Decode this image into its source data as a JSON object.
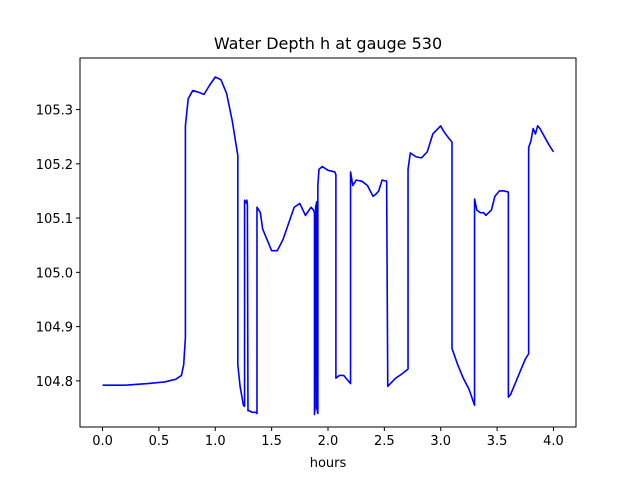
{
  "chart_data": {
    "type": "line",
    "title": "Water Depth h at gauge 530",
    "xlabel": "hours",
    "ylabel": "",
    "xlim": [
      -0.2,
      4.2
    ],
    "ylim": [
      104.715,
      105.395
    ],
    "xticks": [
      0.0,
      0.5,
      1.0,
      1.5,
      2.0,
      2.5,
      3.0,
      3.5,
      4.0
    ],
    "xtick_labels": [
      "0.0",
      "0.5",
      "1.0",
      "1.5",
      "2.0",
      "2.5",
      "3.0",
      "3.5",
      "4.0"
    ],
    "yticks": [
      104.8,
      104.9,
      105.0,
      105.1,
      105.2,
      105.3
    ],
    "ytick_labels": [
      "104.8",
      "104.9",
      "105.0",
      "105.1",
      "105.2",
      "105.3"
    ],
    "grid": false,
    "series": [
      {
        "color": "#0000ff",
        "x": [
          0.0,
          0.2,
          0.4,
          0.55,
          0.65,
          0.7,
          0.72,
          0.735,
          0.735,
          0.76,
          0.8,
          0.85,
          0.9,
          0.95,
          1.0,
          1.05,
          1.1,
          1.15,
          1.2,
          1.2,
          1.22,
          1.25,
          1.26,
          1.26,
          1.27,
          1.28,
          1.285,
          1.29,
          1.3,
          1.33,
          1.36,
          1.37,
          1.37,
          1.4,
          1.42,
          1.45,
          1.5,
          1.55,
          1.6,
          1.65,
          1.7,
          1.75,
          1.8,
          1.85,
          1.87,
          1.88,
          1.88,
          1.885,
          1.89,
          1.9,
          1.9,
          1.91,
          1.91,
          1.92,
          1.95,
          2.0,
          2.06,
          2.07,
          2.07,
          2.1,
          2.14,
          2.18,
          2.2,
          2.2,
          2.22,
          2.25,
          2.3,
          2.35,
          2.4,
          2.43,
          2.45,
          2.48,
          2.52,
          2.53,
          2.53,
          2.6,
          2.65,
          2.7,
          2.71,
          2.71,
          2.73,
          2.78,
          2.83,
          2.88,
          2.93,
          3.0,
          3.02,
          3.05,
          3.08,
          3.1,
          3.1,
          3.15,
          3.2,
          3.25,
          3.3,
          3.3,
          3.32,
          3.35,
          3.38,
          3.4,
          3.45,
          3.48,
          3.52,
          3.56,
          3.6,
          3.6,
          3.62,
          3.65,
          3.7,
          3.75,
          3.78,
          3.78,
          3.8,
          3.82,
          3.84,
          3.86,
          3.88,
          3.92,
          3.96,
          4.0
        ],
        "y": [
          104.792,
          104.792,
          104.795,
          104.798,
          104.803,
          104.81,
          104.83,
          104.88,
          105.27,
          105.32,
          105.335,
          105.332,
          105.328,
          105.345,
          105.36,
          105.355,
          105.33,
          105.28,
          105.215,
          104.83,
          104.79,
          104.755,
          104.753,
          105.133,
          105.128,
          105.133,
          105.125,
          104.745,
          104.745,
          104.742,
          104.742,
          104.74,
          105.12,
          105.11,
          105.08,
          105.065,
          105.04,
          105.04,
          105.06,
          105.09,
          105.12,
          105.127,
          105.105,
          105.12,
          105.115,
          105.11,
          104.738,
          104.75,
          105.12,
          105.13,
          104.75,
          104.74,
          105.16,
          105.19,
          105.195,
          105.188,
          105.185,
          105.18,
          104.805,
          104.81,
          104.81,
          104.8,
          104.795,
          105.185,
          105.16,
          105.17,
          105.168,
          105.16,
          105.14,
          105.145,
          105.15,
          105.17,
          105.168,
          104.79,
          104.79,
          104.805,
          104.812,
          104.82,
          104.822,
          105.19,
          105.22,
          105.213,
          105.211,
          105.222,
          105.255,
          105.27,
          105.262,
          105.253,
          105.245,
          105.24,
          104.86,
          104.83,
          104.805,
          104.785,
          104.755,
          105.135,
          105.115,
          105.11,
          105.11,
          105.105,
          105.115,
          105.14,
          105.15,
          105.15,
          105.148,
          104.77,
          104.775,
          104.79,
          104.815,
          104.84,
          104.85,
          105.23,
          105.242,
          105.265,
          105.255,
          105.27,
          105.265,
          105.25,
          105.235,
          105.222
        ]
      }
    ]
  }
}
